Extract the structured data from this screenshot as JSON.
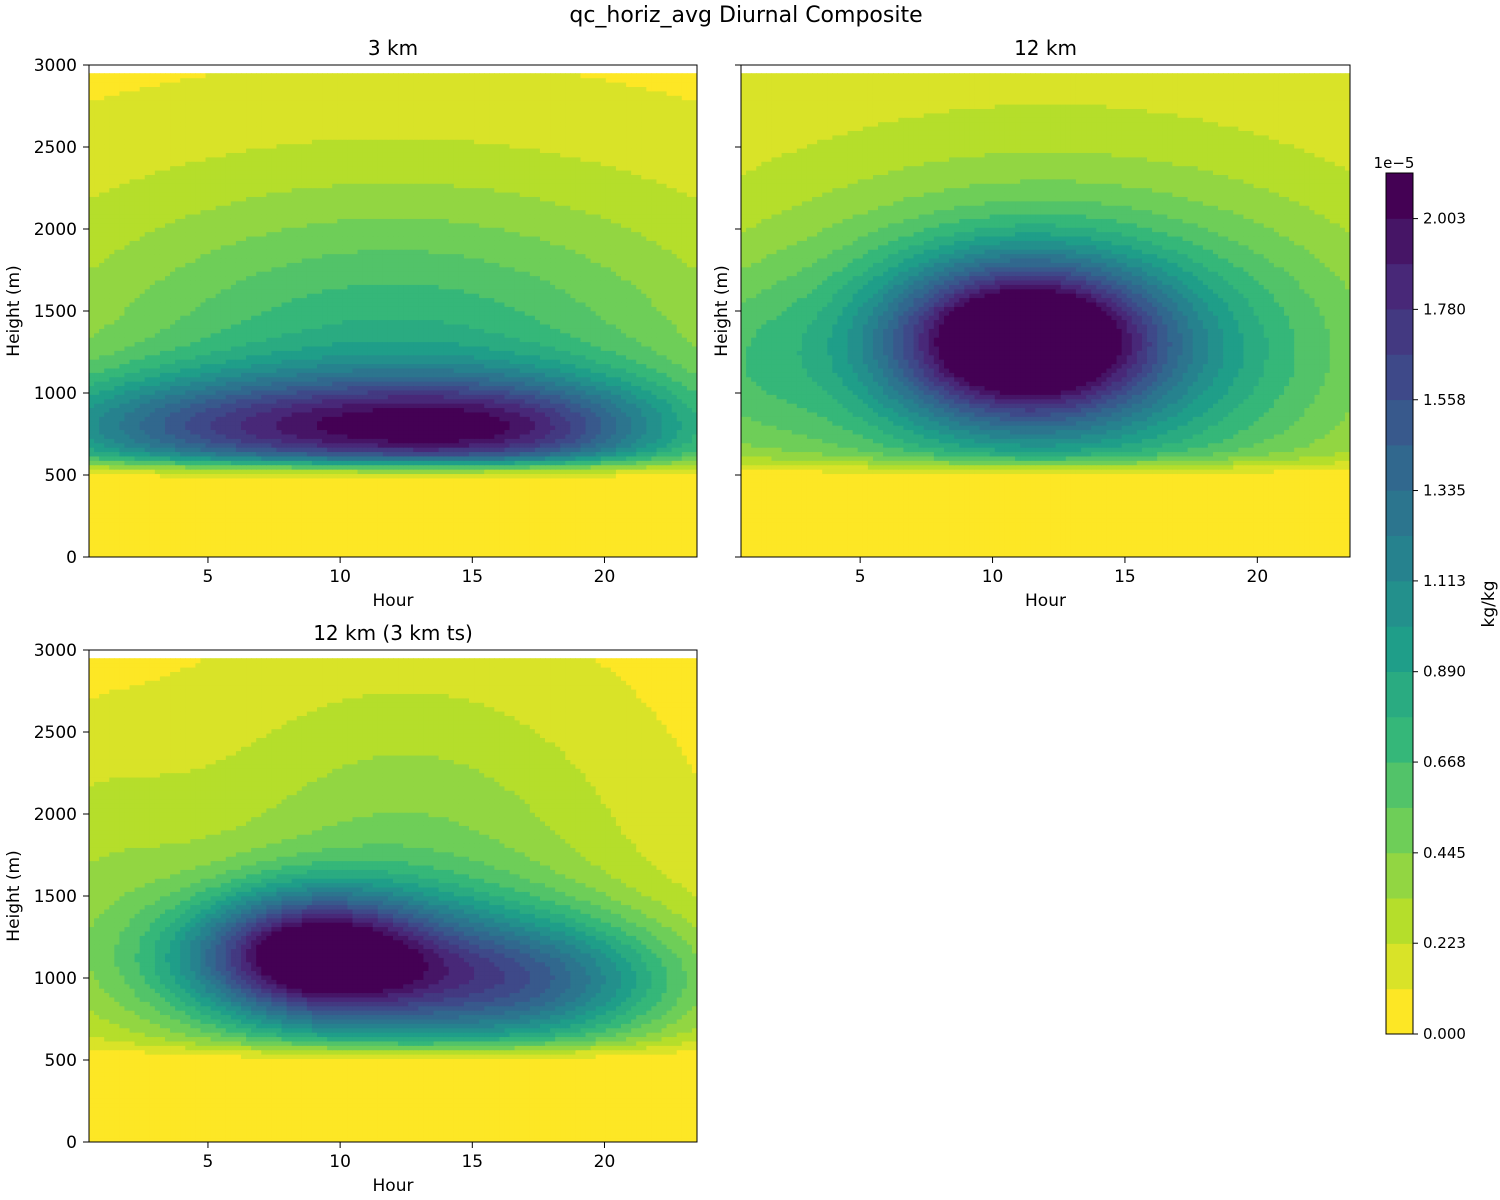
{
  "chart_data": {
    "type": "heatmap",
    "title": "qc_horiz_avg Diurnal Composite",
    "panels": [
      {
        "title": "3 km",
        "xlabel": "Hour",
        "ylabel": "Height (m)",
        "show_xlabel": true,
        "show_y_ticklabels": true,
        "xlim": [
          0.5,
          23.5
        ],
        "ylim": [
          0,
          3000
        ],
        "data_top": 2950,
        "xticks": [
          5,
          10,
          15,
          20
        ],
        "yticks": [
          0,
          500,
          1000,
          1500,
          2000,
          2500,
          3000
        ],
        "field": {
          "base": 0.05,
          "features": [
            {
              "t": 6.5,
              "z": 790,
              "amp": 1.05,
              "st": 6.5,
              "sz": 230,
              "tilt": 0
            },
            {
              "t": 16.5,
              "z": 780,
              "amp": 1.02,
              "st": 5.0,
              "sz": 230,
              "tilt": 0
            },
            {
              "t": 12,
              "z": 1100,
              "amp": 0.45,
              "st": 8.0,
              "sz": 700,
              "tilt": 0
            },
            {
              "t": 12,
              "z": 1300,
              "amp": 0.32,
              "st": 12.0,
              "sz": 900,
              "tilt": 0
            }
          ]
        }
      },
      {
        "title": "12 km",
        "xlabel": "Hour",
        "ylabel": "Height (m)",
        "show_xlabel": true,
        "show_y_ticklabels": false,
        "xlim": [
          0.5,
          23.5
        ],
        "ylim": [
          0,
          3000
        ],
        "data_top": 2950,
        "xticks": [
          5,
          10,
          15,
          20
        ],
        "yticks": [
          0,
          500,
          1000,
          1500,
          2000,
          2500,
          3000
        ],
        "field": {
          "base": 0.06,
          "features": [
            {
              "t": 11.2,
              "z": 1330,
              "amp": 1.65,
              "st": 3.4,
              "sz": 320,
              "tilt": 45
            },
            {
              "t": 12.5,
              "z": 1200,
              "amp": 0.8,
              "st": 7.5,
              "sz": 600,
              "tilt": 0
            },
            {
              "t": 12,
              "z": 1500,
              "amp": 0.3,
              "st": 11.0,
              "sz": 1000,
              "tilt": 0
            },
            {
              "t": 0.5,
              "z": 1150,
              "amp": 0.2,
              "st": 2.0,
              "sz": 400,
              "tilt": 0
            }
          ]
        }
      },
      {
        "title": "12 km (3 km ts)",
        "xlabel": "Hour",
        "ylabel": "Height (m)",
        "show_xlabel": true,
        "show_y_ticklabels": true,
        "xlim": [
          0.5,
          23.5
        ],
        "ylim": [
          0,
          3000
        ],
        "data_top": 2950,
        "xticks": [
          5,
          10,
          15,
          20
        ],
        "yticks": [
          0,
          500,
          1000,
          1500,
          2000,
          2500,
          3000
        ],
        "field": {
          "base": 0.05,
          "features": [
            {
              "t": 8.8,
              "z": 1160,
              "amp": 1.35,
              "st": 3.0,
              "sz": 260,
              "tilt": 0
            },
            {
              "t": 12,
              "z": 1030,
              "amp": 0.85,
              "st": 6.5,
              "sz": 330,
              "tilt": 0
            },
            {
              "t": 17.5,
              "z": 960,
              "amp": 0.6,
              "st": 4.0,
              "sz": 260,
              "tilt": 0
            },
            {
              "t": 12.5,
              "z": 1500,
              "amp": 0.45,
              "st": 6.0,
              "sz": 900,
              "tilt": 0
            },
            {
              "t": 0.5,
              "z": 1600,
              "amp": 0.2,
              "st": 3.0,
              "sz": 600,
              "tilt": 0
            }
          ]
        }
      }
    ],
    "colorbar": {
      "label": "kg/kg",
      "scale_label": "1e−5",
      "vmin": 0.0,
      "vmax": 2.115,
      "levels": 19,
      "tick_values": [
        0.0,
        0.223,
        0.445,
        0.668,
        0.89,
        1.113,
        1.335,
        1.558,
        1.78,
        2.003
      ],
      "tick_labels": [
        "0.000",
        "0.223",
        "0.445",
        "0.668",
        "0.890",
        "1.113",
        "1.335",
        "1.558",
        "1.780",
        "2.003"
      ],
      "colormap": [
        "#fde725",
        "#b5de2b",
        "#6ece58",
        "#35b779",
        "#1f9e89",
        "#26828e",
        "#31688e",
        "#3e4989",
        "#482878",
        "#440154"
      ]
    }
  }
}
